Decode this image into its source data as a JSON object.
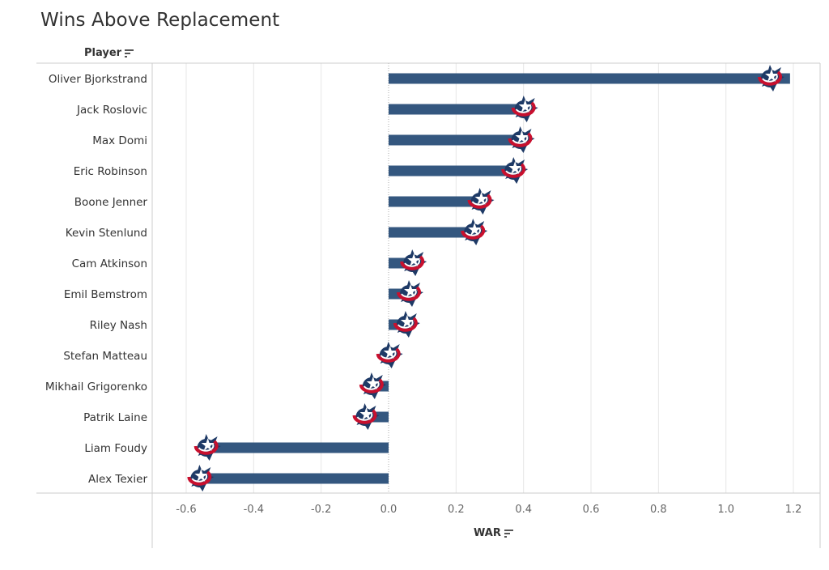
{
  "title": "Wins Above Replacement",
  "colors": {
    "bar": "#34577f",
    "grid": "#e6e6e6",
    "axis": "#cccccc",
    "zero": "#aaaaaa",
    "logo_navy": "#1e3a66",
    "logo_red": "#c8102e"
  },
  "chart_data": {
    "type": "bar",
    "orientation": "horizontal",
    "title": "Wins Above Replacement",
    "ylabel": "Player",
    "xlabel": "WAR",
    "xlim": [
      -0.7,
      1.25
    ],
    "x_ticks": [
      -0.6,
      -0.4,
      -0.2,
      0.0,
      0.2,
      0.4,
      0.6,
      0.8,
      1.0,
      1.2
    ],
    "x_tick_labels": [
      "-0.6",
      "-0.4",
      "-0.2",
      "0.0",
      "0.2",
      "0.4",
      "0.6",
      "0.8",
      "1.0",
      "1.2"
    ],
    "grid": true,
    "mark_icon": "team-logo-icon",
    "categories": [
      "Oliver Bjorkstrand",
      "Jack Roslovic",
      "Max Domi",
      "Eric Robinson",
      "Boone Jenner",
      "Kevin Stenlund",
      "Cam Atkinson",
      "Emil Bemstrom",
      "Riley Nash",
      "Stefan Matteau",
      "Mikhail Grigorenko",
      "Patrik Laine",
      "Liam Foudy",
      "Alex Texier"
    ],
    "values": [
      1.19,
      0.4,
      0.39,
      0.37,
      0.27,
      0.25,
      0.07,
      0.06,
      0.05,
      -0.02,
      -0.07,
      -0.09,
      -0.56,
      -0.58
    ]
  }
}
